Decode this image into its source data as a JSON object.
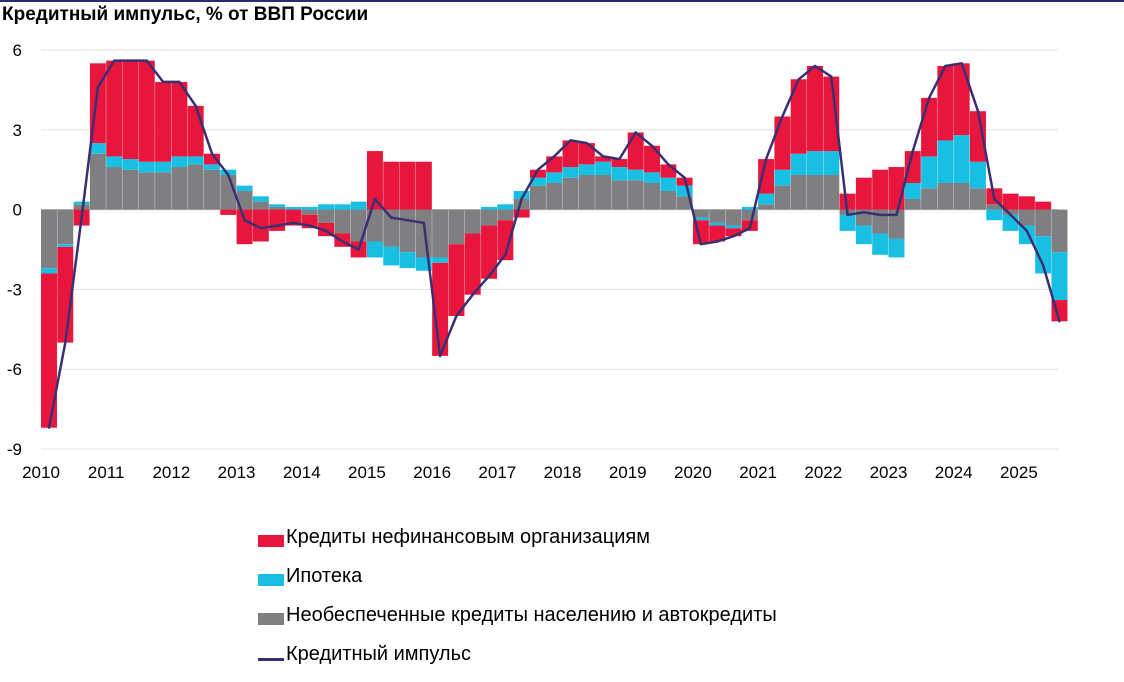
{
  "title": "Кредитный импульс, % от ВВП России",
  "colors": {
    "corporate": "#e8163c",
    "mortgage": "#19bfe3",
    "consumer": "#7f7f82",
    "impulse": "#3b2f73",
    "grid": "#e3e3e3"
  },
  "legend": {
    "corporate": "Кредиты нефинансовым организациям",
    "mortgage": "Ипотека",
    "consumer": "Необеспеченные кредиты населению и автокредиты",
    "impulse": "Кредитный импульс"
  },
  "chart_data": {
    "type": "area",
    "title": "Кредитный импульс, % от ВВП России",
    "xlabel": "",
    "ylabel": "",
    "x_range": [
      2010.0,
      2025.6
    ],
    "ylim": [
      -9,
      6
    ],
    "yticks": [
      6,
      3,
      0,
      -3,
      -6,
      -9
    ],
    "xticks": [
      "2010",
      "2011",
      "2012",
      "2013",
      "2014",
      "2015",
      "2016",
      "2017",
      "2018",
      "2019",
      "2020",
      "2021",
      "2022",
      "2023",
      "2024",
      "2025"
    ],
    "grid": true,
    "legend_position": "bottom",
    "x": [
      2010.0,
      2010.25,
      2010.5,
      2010.75,
      2011.0,
      2011.25,
      2011.5,
      2011.75,
      2012.0,
      2012.25,
      2012.5,
      2012.75,
      2013.0,
      2013.25,
      2013.5,
      2013.75,
      2014.0,
      2014.25,
      2014.5,
      2014.75,
      2015.0,
      2015.25,
      2015.5,
      2015.75,
      2016.0,
      2016.25,
      2016.5,
      2016.75,
      2017.0,
      2017.25,
      2017.5,
      2017.75,
      2018.0,
      2018.25,
      2018.5,
      2018.75,
      2019.0,
      2019.25,
      2019.5,
      2019.75,
      2020.0,
      2020.25,
      2020.5,
      2020.75,
      2021.0,
      2021.25,
      2021.5,
      2021.75,
      2022.0,
      2022.25,
      2022.5,
      2022.75,
      2023.0,
      2023.25,
      2023.5,
      2023.75,
      2024.0,
      2024.25,
      2024.5,
      2024.75,
      2025.0,
      2025.25,
      2025.5
    ],
    "series": [
      {
        "name": "Кредиты нефинансовым организациям",
        "key": "corporate",
        "values": [
          -5.8,
          -3.6,
          -0.6,
          3.0,
          3.6,
          3.7,
          3.8,
          3.0,
          2.8,
          1.9,
          0.4,
          -0.2,
          -1.3,
          -1.2,
          -0.8,
          -0.6,
          -0.5,
          -0.5,
          -0.5,
          -0.6,
          2.2,
          1.8,
          1.8,
          1.8,
          -3.5,
          -2.7,
          -2.3,
          -2.0,
          -1.5,
          -0.3,
          0.3,
          0.6,
          1.0,
          0.8,
          0.2,
          0.3,
          1.4,
          1.0,
          0.5,
          0.3,
          -0.9,
          -0.6,
          -0.3,
          -0.4,
          1.3,
          2.0,
          2.8,
          3.2,
          2.8,
          0.6,
          1.2,
          1.5,
          1.6,
          1.2,
          2.2,
          2.8,
          2.7,
          1.9,
          0.6,
          0.6,
          0.5,
          0.3,
          -0.8
        ]
      },
      {
        "name": "Ипотека",
        "key": "mortgage",
        "values": [
          -0.2,
          -0.1,
          0.1,
          0.4,
          0.4,
          0.4,
          0.4,
          0.4,
          0.4,
          0.3,
          0.2,
          0.2,
          0.2,
          0.2,
          0.1,
          0.1,
          0.1,
          0.2,
          0.2,
          0.3,
          -0.6,
          -0.7,
          -0.6,
          -0.5,
          -0.2,
          0.0,
          0.0,
          0.1,
          0.2,
          0.3,
          0.3,
          0.4,
          0.4,
          0.4,
          0.5,
          0.5,
          0.4,
          0.4,
          0.5,
          0.4,
          -0.1,
          -0.1,
          -0.1,
          0.1,
          0.4,
          0.6,
          0.8,
          0.9,
          0.9,
          -0.6,
          -0.7,
          -0.8,
          -0.7,
          0.6,
          1.2,
          1.6,
          1.8,
          1.0,
          -0.4,
          -0.6,
          -0.7,
          -1.4,
          -1.8
        ]
      },
      {
        "name": "Необеспеченные кредиты населению и автокредиты",
        "key": "consumer",
        "values": [
          -2.2,
          -1.3,
          0.2,
          2.1,
          1.6,
          1.5,
          1.4,
          1.4,
          1.6,
          1.7,
          1.5,
          1.3,
          0.7,
          0.3,
          0.1,
          0.0,
          -0.2,
          -0.5,
          -0.9,
          -1.2,
          -1.2,
          -1.4,
          -1.6,
          -1.8,
          -1.8,
          -1.3,
          -0.9,
          -0.6,
          -0.4,
          0.4,
          0.9,
          1.0,
          1.2,
          1.3,
          1.3,
          1.1,
          1.1,
          1.0,
          0.7,
          0.5,
          -0.3,
          -0.5,
          -0.6,
          -0.4,
          0.2,
          0.9,
          1.3,
          1.3,
          1.3,
          -0.2,
          -0.6,
          -0.9,
          -1.1,
          0.4,
          0.8,
          1.0,
          1.0,
          0.8,
          0.2,
          -0.2,
          -0.6,
          -1.0,
          -1.6
        ]
      },
      {
        "name": "Кредитный импульс",
        "key": "impulse",
        "values": [
          -8.2,
          -5.0,
          -0.3,
          4.6,
          5.6,
          5.6,
          5.6,
          4.8,
          4.8,
          3.9,
          2.1,
          1.3,
          -0.4,
          -0.7,
          -0.6,
          -0.5,
          -0.6,
          -0.8,
          -1.2,
          -1.5,
          0.4,
          -0.3,
          -0.4,
          -0.5,
          -5.5,
          -4.0,
          -3.2,
          -2.5,
          -1.7,
          0.4,
          1.5,
          2.0,
          2.6,
          2.5,
          2.0,
          1.9,
          2.9,
          2.4,
          1.7,
          1.2,
          -1.3,
          -1.2,
          -1.0,
          -0.7,
          1.9,
          3.5,
          4.9,
          5.4,
          5.0,
          -0.2,
          -0.1,
          -0.2,
          -0.2,
          2.2,
          4.2,
          5.4,
          5.5,
          3.7,
          0.4,
          -0.2,
          -0.8,
          -2.1,
          -4.2
        ]
      }
    ]
  }
}
